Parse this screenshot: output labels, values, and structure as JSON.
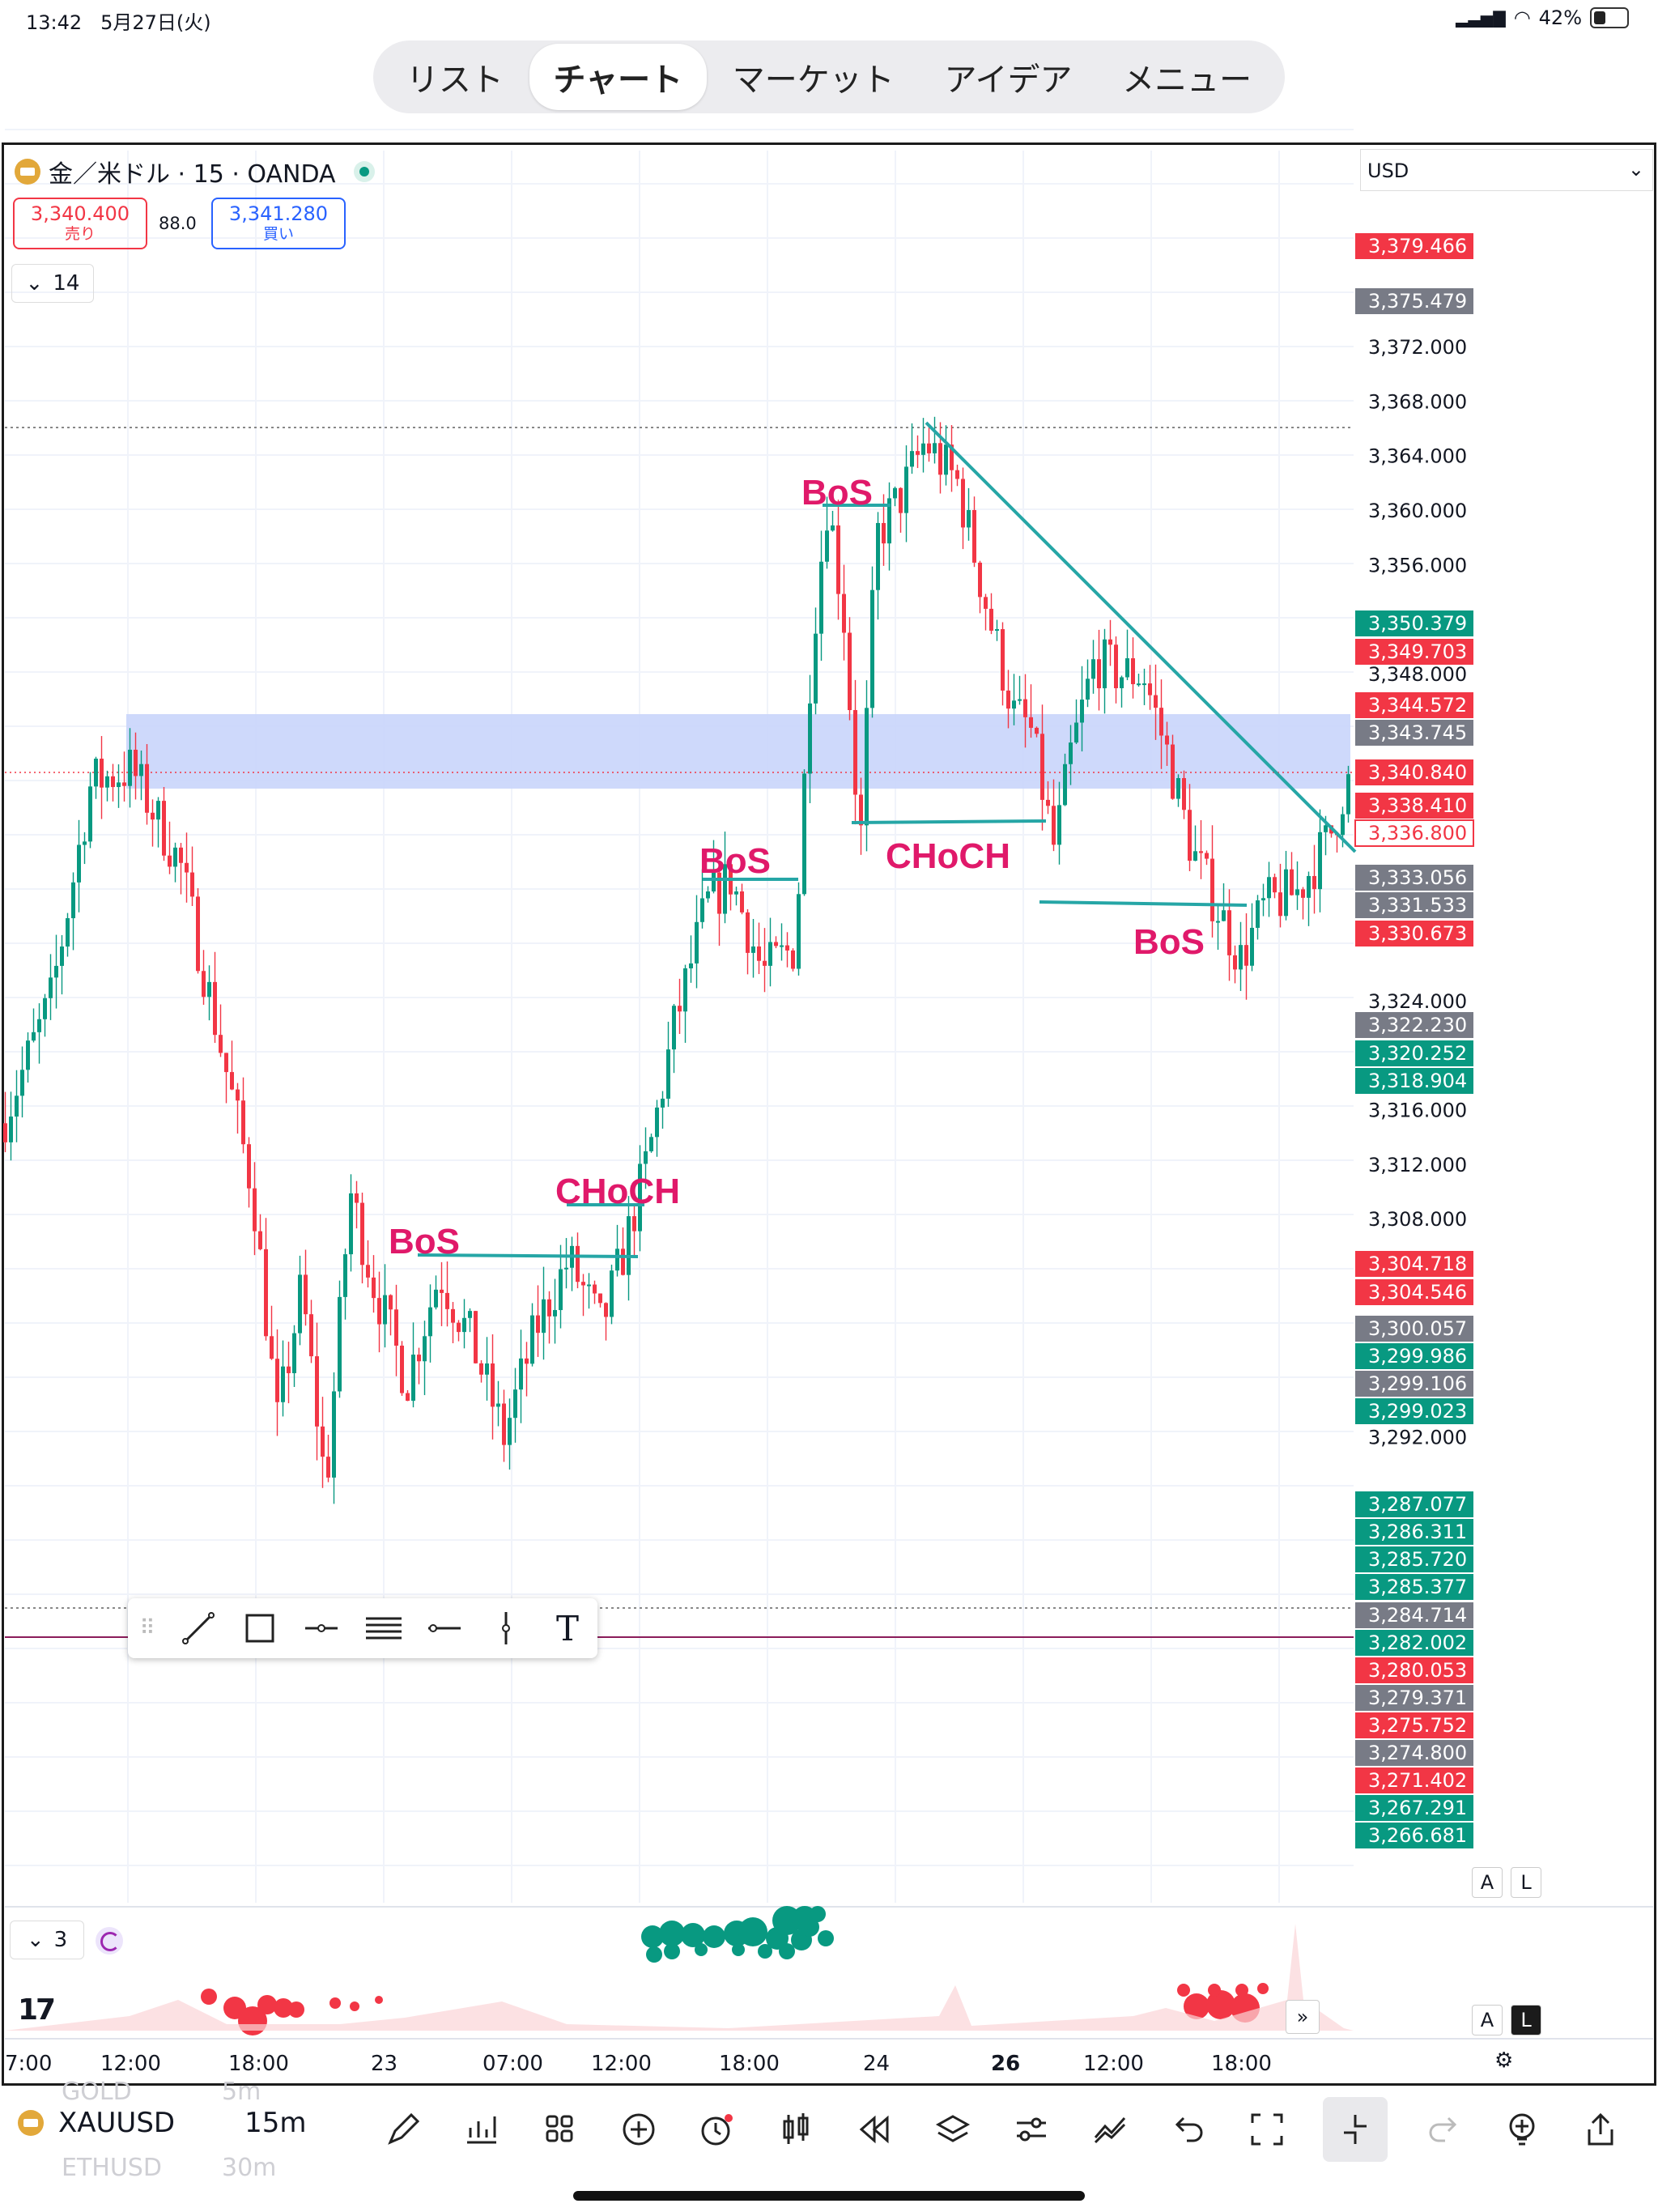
{
  "status": {
    "time": "13:42",
    "date": "5月27日(火)",
    "battery": "42%"
  },
  "tabs": [
    "リスト",
    "チャート",
    "マーケット",
    "アイデア",
    "メニュー"
  ],
  "active_tab": 1,
  "header": {
    "symbol": "金／米ドル · 15 · OANDA",
    "sell_price": "3,340.400",
    "sell_label": "売り",
    "buy_price": "3,341.280",
    "buy_label": "買い",
    "spread": "88.0",
    "collapse_count": "14",
    "currency": "USD"
  },
  "price_axis_ticks": [
    "3,372.000",
    "3,368.000",
    "3,364.000",
    "3,360.000",
    "3,356.000",
    "3,348.000",
    "3,324.000",
    "3,316.000",
    "3,312.000",
    "3,308.000",
    "3,292.000"
  ],
  "price_tags": [
    {
      "text": "3,379.466",
      "color": "#f23645"
    },
    {
      "text": "3,375.479",
      "color": "#787b86"
    },
    {
      "text": "3,350.379",
      "color": "#089981"
    },
    {
      "text": "3,349.703",
      "color": "#f23645"
    },
    {
      "text": "3,344.572",
      "color": "#f23645"
    },
    {
      "text": "3,343.745",
      "color": "#787b86"
    },
    {
      "text": "3,340.840",
      "color": "#f23645"
    },
    {
      "text": "3,338.410",
      "color": "#f23645"
    },
    {
      "text": "3,336.800",
      "color": "#ffffff"
    },
    {
      "text": "3,333.056",
      "color": "#787b86"
    },
    {
      "text": "3,331.533",
      "color": "#787b86"
    },
    {
      "text": "3,330.673",
      "color": "#f23645"
    },
    {
      "text": "3,322.230",
      "color": "#787b86"
    },
    {
      "text": "3,320.252",
      "color": "#089981"
    },
    {
      "text": "3,318.904",
      "color": "#089981"
    },
    {
      "text": "3,304.718",
      "color": "#f23645"
    },
    {
      "text": "3,304.546",
      "color": "#f23645"
    },
    {
      "text": "3,300.057",
      "color": "#787b86"
    },
    {
      "text": "3,299.986",
      "color": "#089981"
    },
    {
      "text": "3,299.106",
      "color": "#787b86"
    },
    {
      "text": "3,299.023",
      "color": "#089981"
    },
    {
      "text": "3,287.077",
      "color": "#089981"
    },
    {
      "text": "3,286.311",
      "color": "#089981"
    },
    {
      "text": "3,285.720",
      "color": "#089981"
    },
    {
      "text": "3,285.377",
      "color": "#089981"
    },
    {
      "text": "3,284.714",
      "color": "#787b86"
    },
    {
      "text": "3,282.002",
      "color": "#089981"
    },
    {
      "text": "3,280.053",
      "color": "#f23645"
    },
    {
      "text": "3,279.371",
      "color": "#787b86"
    },
    {
      "text": "3,275.752",
      "color": "#f23645"
    },
    {
      "text": "3,274.800",
      "color": "#787b86"
    },
    {
      "text": "3,271.402",
      "color": "#f23645"
    },
    {
      "text": "3,267.291",
      "color": "#089981"
    },
    {
      "text": "3,266.681",
      "color": "#089981"
    }
  ],
  "annotations": [
    "BoS",
    "BoS",
    "CHoCH",
    "BoS",
    "CHoCH",
    "BoS"
  ],
  "x_axis": [
    "7:00",
    "12:00",
    "18:00",
    "23",
    "07:00",
    "12:00",
    "18:00",
    "24",
    "26",
    "12:00",
    "18:00"
  ],
  "indicator_count": "3",
  "scale_buttons": {
    "auto": "A",
    "log": "L"
  },
  "bottom": {
    "symbol": "XAUUSD",
    "interval": "15m",
    "ghost_symbols": [
      "GOLD",
      "ETHUSD"
    ],
    "ghost_intervals": [
      "5m",
      "30m"
    ]
  },
  "colors": {
    "up": "#089981",
    "down": "#f23645",
    "annotation": "#e0196a",
    "trend": "#26a6a6",
    "zone": "#c9d5fb"
  }
}
